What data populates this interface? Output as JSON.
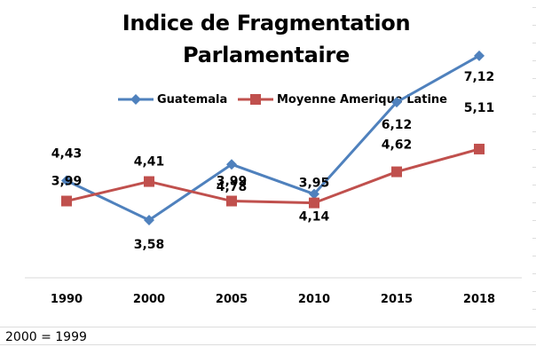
{
  "chart_data": {
    "type": "line",
    "title": [
      "Indice de Fragmentation",
      "Parlamentaire"
    ],
    "categories": [
      "1990",
      "2000",
      "2005",
      "2010",
      "2015",
      "2018"
    ],
    "series": [
      {
        "name": "Guatemala",
        "color": "#4f81bd",
        "marker": "diamond",
        "values": [
          4.43,
          3.58,
          4.78,
          4.14,
          6.12,
          7.12
        ],
        "labels": [
          "4,43",
          "3,58",
          "4,78",
          "4,14",
          "6,12",
          "7,12"
        ]
      },
      {
        "name": "Moyenne Amerique Latine",
        "color": "#c0504d",
        "marker": "square",
        "values": [
          3.99,
          4.41,
          3.99,
          3.95,
          4.62,
          5.11
        ],
        "labels": [
          "3,99",
          "4,41",
          "3,99",
          "3,95",
          "4,62",
          "5,11"
        ]
      }
    ],
    "legend_position": "top",
    "grid": false
  },
  "footnote": "2000 = 1999"
}
